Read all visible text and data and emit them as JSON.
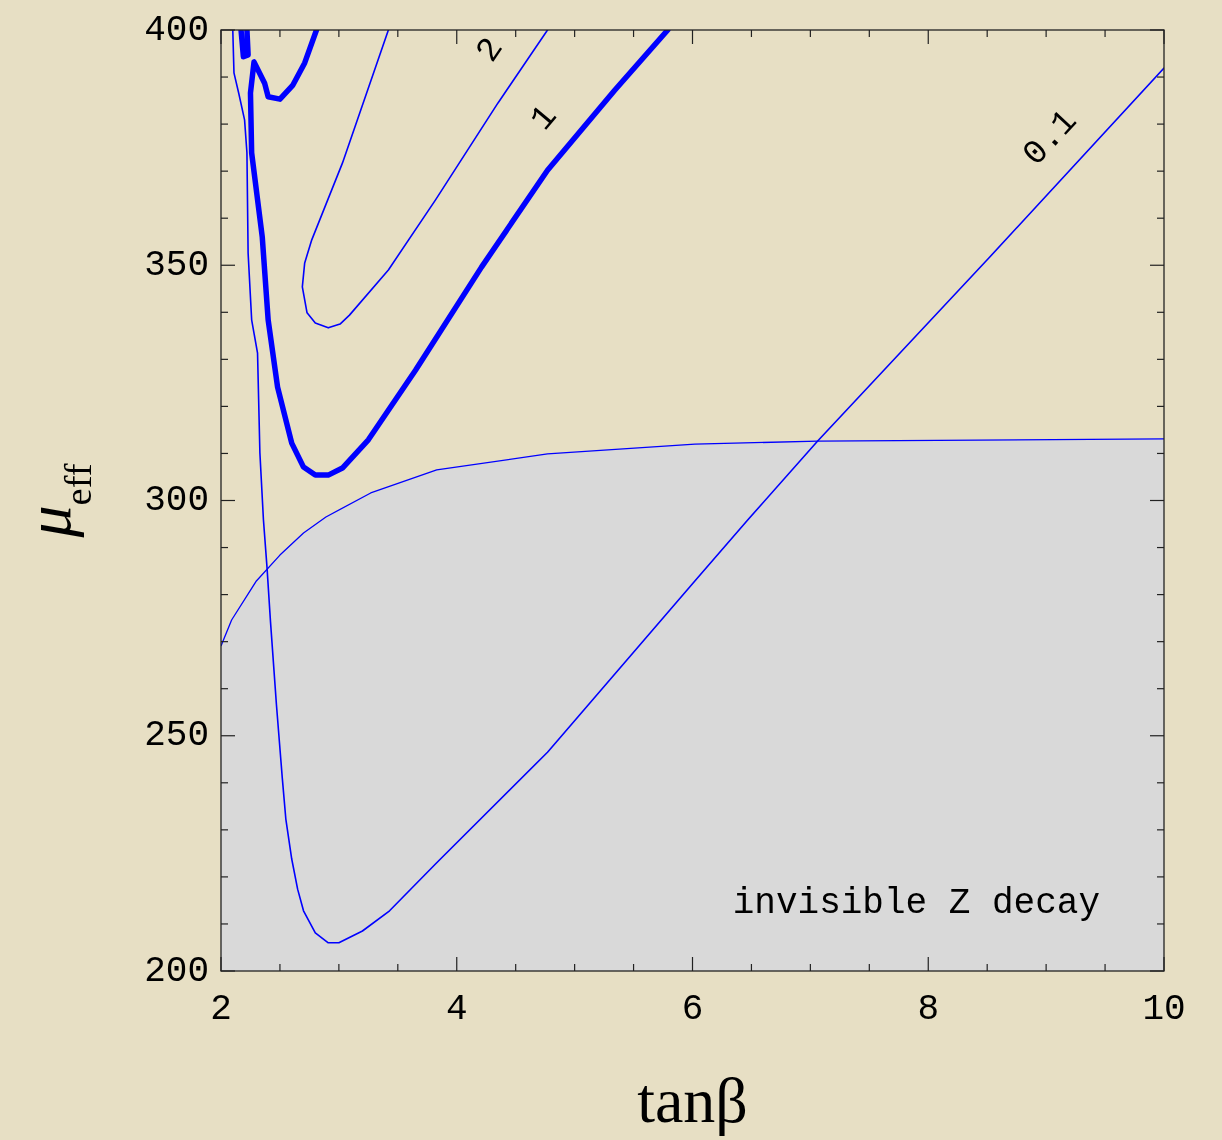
{
  "chart_data": {
    "type": "line",
    "xlabel": "tanβ",
    "ylabel": "μ$_{eff}$",
    "xlim": [
      2,
      10
    ],
    "ylim": [
      200,
      400
    ],
    "xticks": [
      2,
      {
        "value": 2.5,
        "label": null
      },
      {
        "value": 3,
        "label": null
      },
      {
        "value": 3.5,
        "label": null
      },
      4,
      {
        "value": 4.5,
        "label": null
      },
      {
        "value": 5,
        "label": null
      },
      {
        "value": 5.5,
        "label": null
      },
      6,
      {
        "value": 6.5,
        "label": null
      },
      {
        "value": 7,
        "label": null
      },
      {
        "value": 7.5,
        "label": null
      },
      8,
      {
        "value": 8.5,
        "label": null
      },
      {
        "value": 9,
        "label": null
      },
      {
        "value": 9.5,
        "label": null
      },
      10
    ],
    "yticks": [
      200,
      {
        "value": 210,
        "label": null
      },
      {
        "value": 220,
        "label": null
      },
      {
        "value": 230,
        "label": null
      },
      {
        "value": 240,
        "label": null
      },
      250,
      {
        "value": 260,
        "label": null
      },
      {
        "value": 270,
        "label": null
      },
      {
        "value": 280,
        "label": null
      },
      {
        "value": 290,
        "label": null
      },
      300,
      {
        "value": 310,
        "label": null
      },
      {
        "value": 320,
        "label": null
      },
      {
        "value": 330,
        "label": null
      },
      {
        "value": 340,
        "label": null
      },
      350,
      {
        "value": 360,
        "label": null
      },
      {
        "value": 370,
        "label": null
      },
      {
        "value": 380,
        "label": null
      },
      {
        "value": 390,
        "label": null
      },
      400
    ],
    "annotations": [
      "invisible Z decay"
    ],
    "series": [
      {
        "type": "area",
        "color": "#d9d9d9",
        "x": [
          2.0,
          2.09,
          2.3,
          2.5,
          2.7,
          2.89,
          3.27,
          3.83,
          4.77,
          6.02,
          7.06,
          10.0
        ],
        "values": [
          269.1,
          274.6,
          282.9,
          288.4,
          293.1,
          296.5,
          301.6,
          306.5,
          309.9,
          312.0,
          312.6,
          313.1
        ]
      },
      {
        "name": "0.1",
        "color": "#0000ff",
        "x": [
          2.1,
          2.11,
          2.15,
          2.2,
          2.22,
          2.23,
          2.26,
          2.31,
          2.33,
          2.36,
          2.39,
          2.42,
          2.47,
          2.52,
          2.55,
          2.6,
          2.65,
          2.7,
          2.8,
          2.91,
          3.0,
          3.2,
          3.43,
          3.83,
          4.77,
          6.02,
          6.47,
          7.06,
          8.52,
          10.0
        ],
        "values": [
          400,
          390.9,
          386.6,
          380.9,
          373.9,
          352.6,
          338.4,
          331.3,
          310.1,
          295.9,
          285.9,
          274.2,
          256.7,
          241,
          232.3,
          223.8,
          217.4,
          212.8,
          208.1,
          206,
          206,
          208.5,
          212.8,
          223,
          246.5,
          282.9,
          295.9,
          312.6,
          351.7,
          391.9
        ]
      },
      {
        "name": "2",
        "color": "#0000ff",
        "x": [
          3.42,
          3.03,
          2.77,
          2.71,
          2.69,
          2.73,
          2.8,
          2.91,
          3.01,
          3.09,
          3.42,
          3.82,
          4.35,
          4.77
        ],
        "values": [
          400,
          371.7,
          355.4,
          350.5,
          345.4,
          339.9,
          337.7,
          336.7,
          337.5,
          339.4,
          349,
          363.9,
          384.5,
          400
        ]
      },
      {
        "name": "1",
        "color": "#0000ff",
        "x": [
          2.17,
          2.19,
          2.23,
          2.22,
          null,
          2.81,
          2.71,
          2.61,
          2.5,
          2.4,
          2.37,
          2.28,
          2.25,
          2.26,
          2.35,
          2.4,
          2.48,
          2.6,
          2.7,
          2.8,
          2.91,
          3.03,
          3.25,
          3.65,
          4.21,
          4.77,
          5.34,
          5.79
        ],
        "values": [
          400,
          394.3,
          394.7,
          400,
          null,
          400,
          393,
          388.3,
          385.3,
          385.8,
          388.7,
          393.2,
          386.6,
          373.9,
          356,
          338.4,
          324.1,
          312.2,
          307.1,
          305.4,
          305.4,
          306.9,
          312.9,
          327.7,
          349.6,
          370.2,
          387.2,
          400
        ]
      }
    ]
  }
}
